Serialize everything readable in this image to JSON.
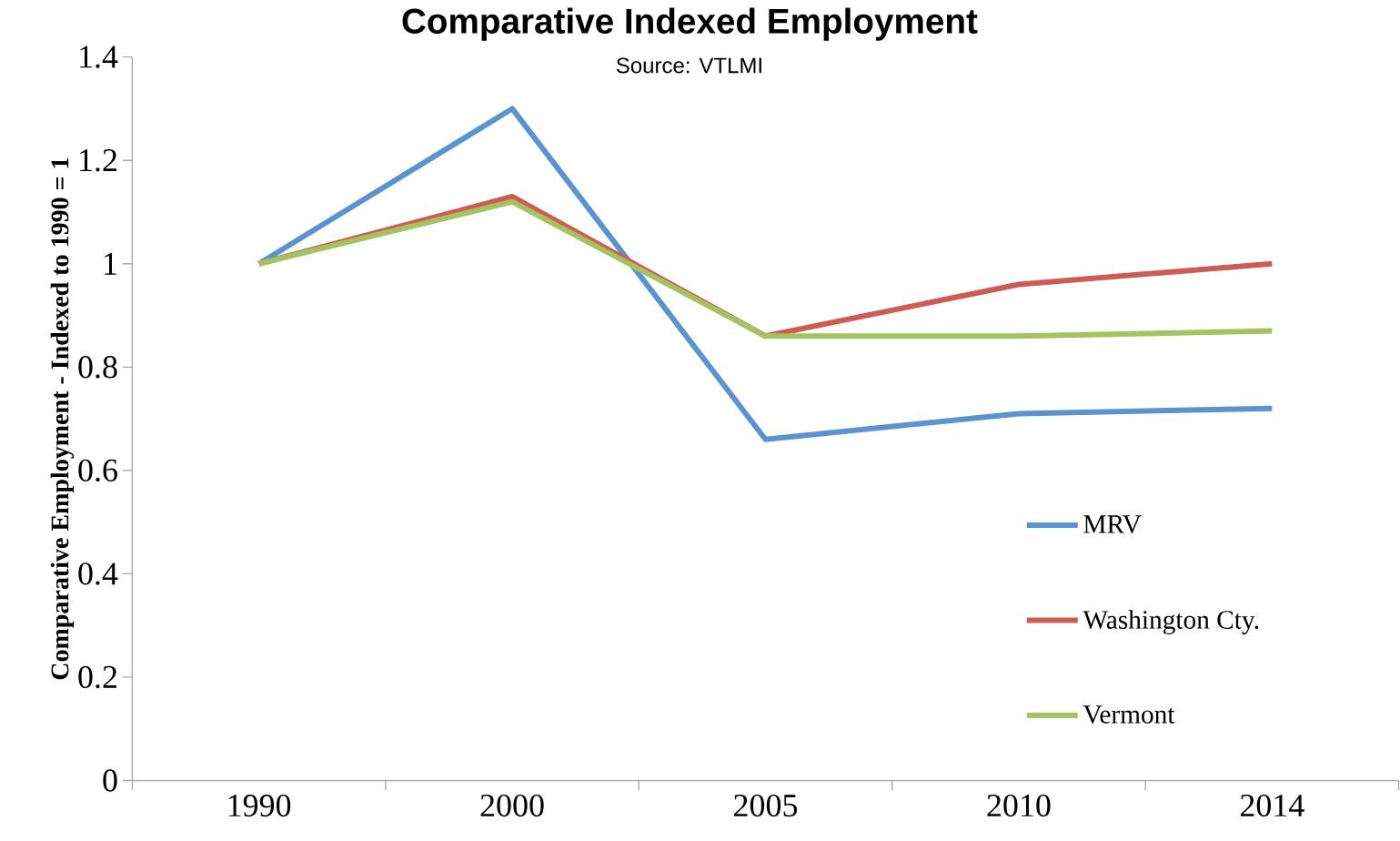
{
  "chart_data": {
    "type": "line",
    "title": "Comparative Indexed Employment",
    "annotations": [
      "Source: VTLMI"
    ],
    "ylabel": "Comparative Employment - Indexed to 1990 = 1",
    "categories": [
      "1990",
      "2000",
      "2005",
      "2010",
      "2014"
    ],
    "series": [
      {
        "name": "MRV",
        "color": "#5b93cf",
        "values": [
          1.0,
          1.3,
          0.66,
          0.71,
          0.72
        ]
      },
      {
        "name": "Washington Cty.",
        "color": "#cd5c55",
        "values": [
          1.0,
          1.13,
          0.86,
          0.96,
          1.0
        ]
      },
      {
        "name": "Vermont",
        "color": "#a5c260",
        "values": [
          1.0,
          1.12,
          0.86,
          0.86,
          0.87
        ]
      }
    ],
    "ylim": [
      0,
      1.4
    ],
    "yticks": [
      0,
      0.2,
      0.4,
      0.6,
      0.8,
      1,
      1.2,
      1.4
    ],
    "grid": false,
    "legend": "bottom right",
    "marker": "none",
    "line_style": "solid"
  }
}
